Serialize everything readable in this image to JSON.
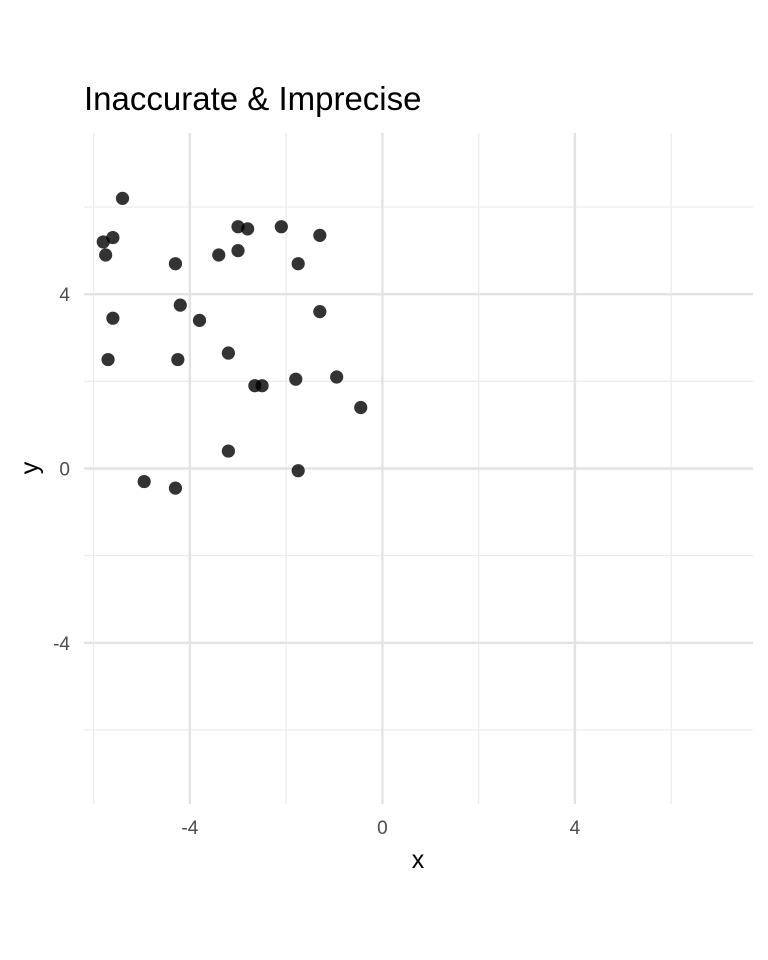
{
  "chart_data": {
    "type": "scatter",
    "title": "Inaccurate & Imprecise",
    "xlabel": "x",
    "ylabel": "y",
    "xlim": [
      -6.2,
      7.7
    ],
    "ylim": [
      -7.7,
      7.7
    ],
    "x_ticks": [
      -4,
      0,
      4
    ],
    "y_ticks": [
      -4,
      0,
      4
    ],
    "x_minor": [
      -6,
      -2,
      2,
      6
    ],
    "y_minor": [
      -6,
      -2,
      2,
      6
    ],
    "grid": true,
    "point_color": "#000000",
    "point_opacity": 0.8,
    "points": [
      {
        "x": -5.4,
        "y": 6.2
      },
      {
        "x": -5.8,
        "y": 5.2
      },
      {
        "x": -5.6,
        "y": 5.3
      },
      {
        "x": -5.75,
        "y": 4.9
      },
      {
        "x": -5.6,
        "y": 3.45
      },
      {
        "x": -5.7,
        "y": 2.5
      },
      {
        "x": -4.3,
        "y": 4.7
      },
      {
        "x": -4.2,
        "y": 3.75
      },
      {
        "x": -4.25,
        "y": 2.5
      },
      {
        "x": -3.8,
        "y": 3.4
      },
      {
        "x": -3.4,
        "y": 4.9
      },
      {
        "x": -3.2,
        "y": 2.65
      },
      {
        "x": -3.0,
        "y": 5.55
      },
      {
        "x": -2.8,
        "y": 5.5
      },
      {
        "x": -3.0,
        "y": 5.0
      },
      {
        "x": -2.65,
        "y": 1.9
      },
      {
        "x": -2.5,
        "y": 1.9
      },
      {
        "x": -2.1,
        "y": 5.55
      },
      {
        "x": -1.75,
        "y": 4.7
      },
      {
        "x": -1.3,
        "y": 5.35
      },
      {
        "x": -1.3,
        "y": 3.6
      },
      {
        "x": -1.8,
        "y": 2.05
      },
      {
        "x": -0.95,
        "y": 2.1
      },
      {
        "x": -0.45,
        "y": 1.4
      },
      {
        "x": -3.2,
        "y": 0.4
      },
      {
        "x": -1.75,
        "y": -0.05
      },
      {
        "x": -4.95,
        "y": -0.3
      },
      {
        "x": -4.3,
        "y": -0.45
      }
    ]
  }
}
